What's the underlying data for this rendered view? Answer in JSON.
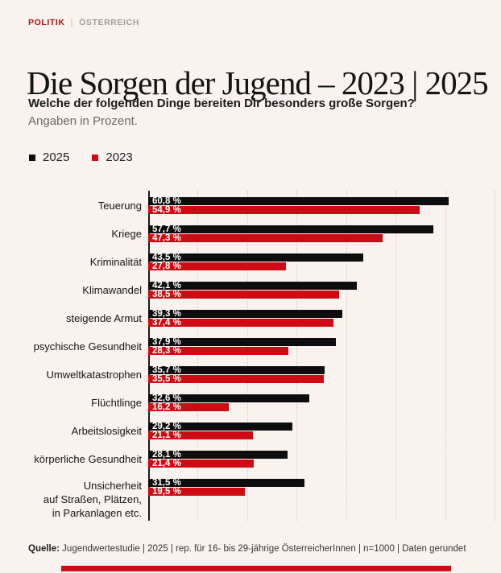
{
  "page": {
    "background": "#f9f2ef",
    "accent_red": "#d00a12"
  },
  "breadcrumb": {
    "section": "POLITIK",
    "separator": "|",
    "region": "ÖSTERREICH"
  },
  "header": {
    "title": "Die Sorgen der Jugend – 2023 | 2025"
  },
  "intro": {
    "question": "Welche der folgenden Dinge bereiten Dir besonders große Sorgen?",
    "note": "Angaben in Prozent."
  },
  "legend": {
    "items": [
      {
        "label": "2025",
        "color": "#0d0d0d"
      },
      {
        "label": "2023",
        "color": "#d00a12"
      }
    ]
  },
  "chart_data": {
    "type": "bar",
    "orientation": "horizontal",
    "title": "Die Sorgen der Jugend – 2023 | 2025",
    "xlabel": "Prozent",
    "ylabel": "",
    "xlim": [
      0,
      71.3
    ],
    "gridlines_pct": [
      10,
      20,
      30,
      40,
      50,
      60,
      70
    ],
    "grid_style": "dotted-vertical",
    "legend_position": "top-left",
    "value_label_color": "#ffffff",
    "categories": [
      "Teuerung",
      "Kriege",
      "Kriminalität",
      "Klimawandel",
      "steigende Armut",
      "psychische Gesundheit",
      "Umweltkatastrophen",
      "Flüchtlinge",
      "Arbeitslosigkeit",
      "körperliche Gesundheit",
      "Unsicherheit\nauf Straßen, Plätzen,\nin Parkanlagen etc."
    ],
    "series": [
      {
        "name": "2025",
        "color": "#0d0d0d",
        "values": [
          60.8,
          57.7,
          43.5,
          42.1,
          39.3,
          37.9,
          35.7,
          32.6,
          29.2,
          28.1,
          31.5
        ],
        "labels": [
          "60,8 %",
          "57,7 %",
          "43,5 %",
          "42,1 %",
          "39,3 %",
          "37,9 %",
          "35,7 %",
          "32,6 %",
          "29,2 %",
          "28,1 %",
          "31,5 %"
        ]
      },
      {
        "name": "2023",
        "color": "#d00a12",
        "values": [
          54.9,
          47.3,
          27.8,
          38.5,
          37.4,
          28.3,
          35.5,
          16.2,
          21.1,
          21.4,
          19.5
        ],
        "labels": [
          "54,9 %",
          "47,3 %",
          "27,8 %",
          "38,5 %",
          "37,4 %",
          "28,3 %",
          "35,5 %",
          "16,2 %",
          "21,1 %",
          "21,4 %",
          "19,5 %"
        ]
      }
    ]
  },
  "source": {
    "label": "Quelle:",
    "text": " Jugendwertestudie | 2025 | rep. für 16- bis 29-jährige ÖsterreicherInnen | n=1000 | Daten gerundet"
  }
}
